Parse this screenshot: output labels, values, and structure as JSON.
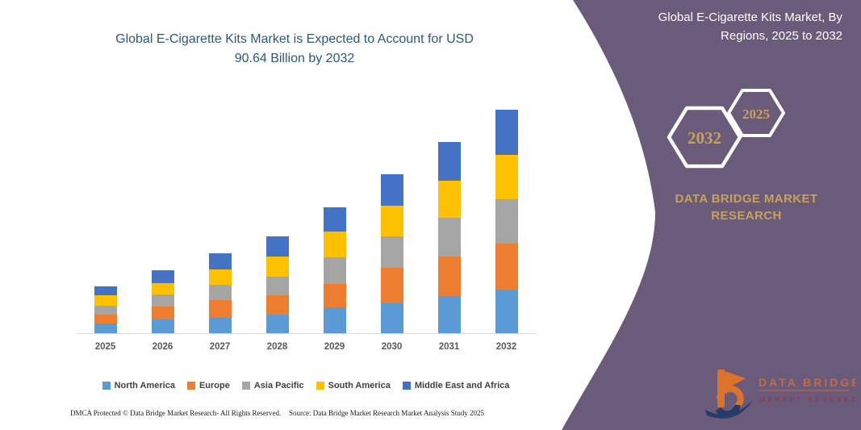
{
  "left_panel": {
    "title_line1": "Global E-Cigarette Kits Market is Expected to Account for USD",
    "title_line2": "90.64 Billion by 2032",
    "footer_left": "DMCA Protected © Data Bridge Market Research-  All Rights Reserved.",
    "footer_right": "Source: Data Bridge Market Research  Market Analysis Study 2025"
  },
  "right_panel": {
    "title_line1": "Global E-Cigarette Kits Market, By",
    "title_line2": "Regions, 2025 to 2032",
    "hexagons": [
      {
        "label": "2032"
      },
      {
        "label": "2025"
      }
    ],
    "brand_line1": "DATA BRIDGE MARKET",
    "brand_line2": "RESEARCH",
    "logo": {
      "brand": "DATA BRIDGE",
      "sub": "MARKET RESEARCH"
    }
  },
  "colors": {
    "purple_bg": "#6B5B7B",
    "gold": "#C9A05E",
    "title_blue": "#2E5878",
    "axis_line": "#D9D9D9",
    "logo_orange": "#E87722",
    "logo_navy": "#1F3864",
    "logo_maroon": "#8A3A50"
  },
  "chart_data": {
    "type": "bar",
    "stacked": true,
    "title": "Global E-Cigarette Kits Market is Expected to Account for USD 90.64 Billion by 2032",
    "subtitle": "Global E-Cigarette Kits Market, By Regions, 2025 to 2032",
    "unit": "USD Billion",
    "categories": [
      "2025",
      "2026",
      "2027",
      "2028",
      "2029",
      "2030",
      "2031",
      "2032"
    ],
    "series": [
      {
        "name": "North America",
        "color": "#5B9BD5",
        "values": [
          3.9,
          5.5,
          6.3,
          7.6,
          10.5,
          12.2,
          15.2,
          17.7
        ]
      },
      {
        "name": "Europe",
        "color": "#ED7D31",
        "values": [
          3.5,
          5.3,
          7.0,
          7.8,
          9.6,
          14.3,
          15.8,
          18.7
        ]
      },
      {
        "name": "Asia Pacific",
        "color": "#A5A5A5",
        "values": [
          3.8,
          4.9,
          6.3,
          7.4,
          10.5,
          12.7,
          15.8,
          17.7
        ]
      },
      {
        "name": "South America",
        "color": "#FFC000",
        "values": [
          4.2,
          4.5,
          6.2,
          8.2,
          10.6,
          12.3,
          14.9,
          18.2
        ]
      },
      {
        "name": "Middle East and Africa",
        "color": "#4472C4",
        "values": [
          3.7,
          5.2,
          6.6,
          8.1,
          9.9,
          13.0,
          15.7,
          18.3
        ]
      }
    ],
    "totals": [
      19.1,
      25.4,
      32.4,
      39.1,
      51.1,
      64.5,
      77.4,
      90.6
    ],
    "xlabel": "",
    "ylabel": "",
    "ylim": [
      0,
      95
    ],
    "grid": false,
    "y_axis_visible": false,
    "legend_position": "bottom"
  }
}
